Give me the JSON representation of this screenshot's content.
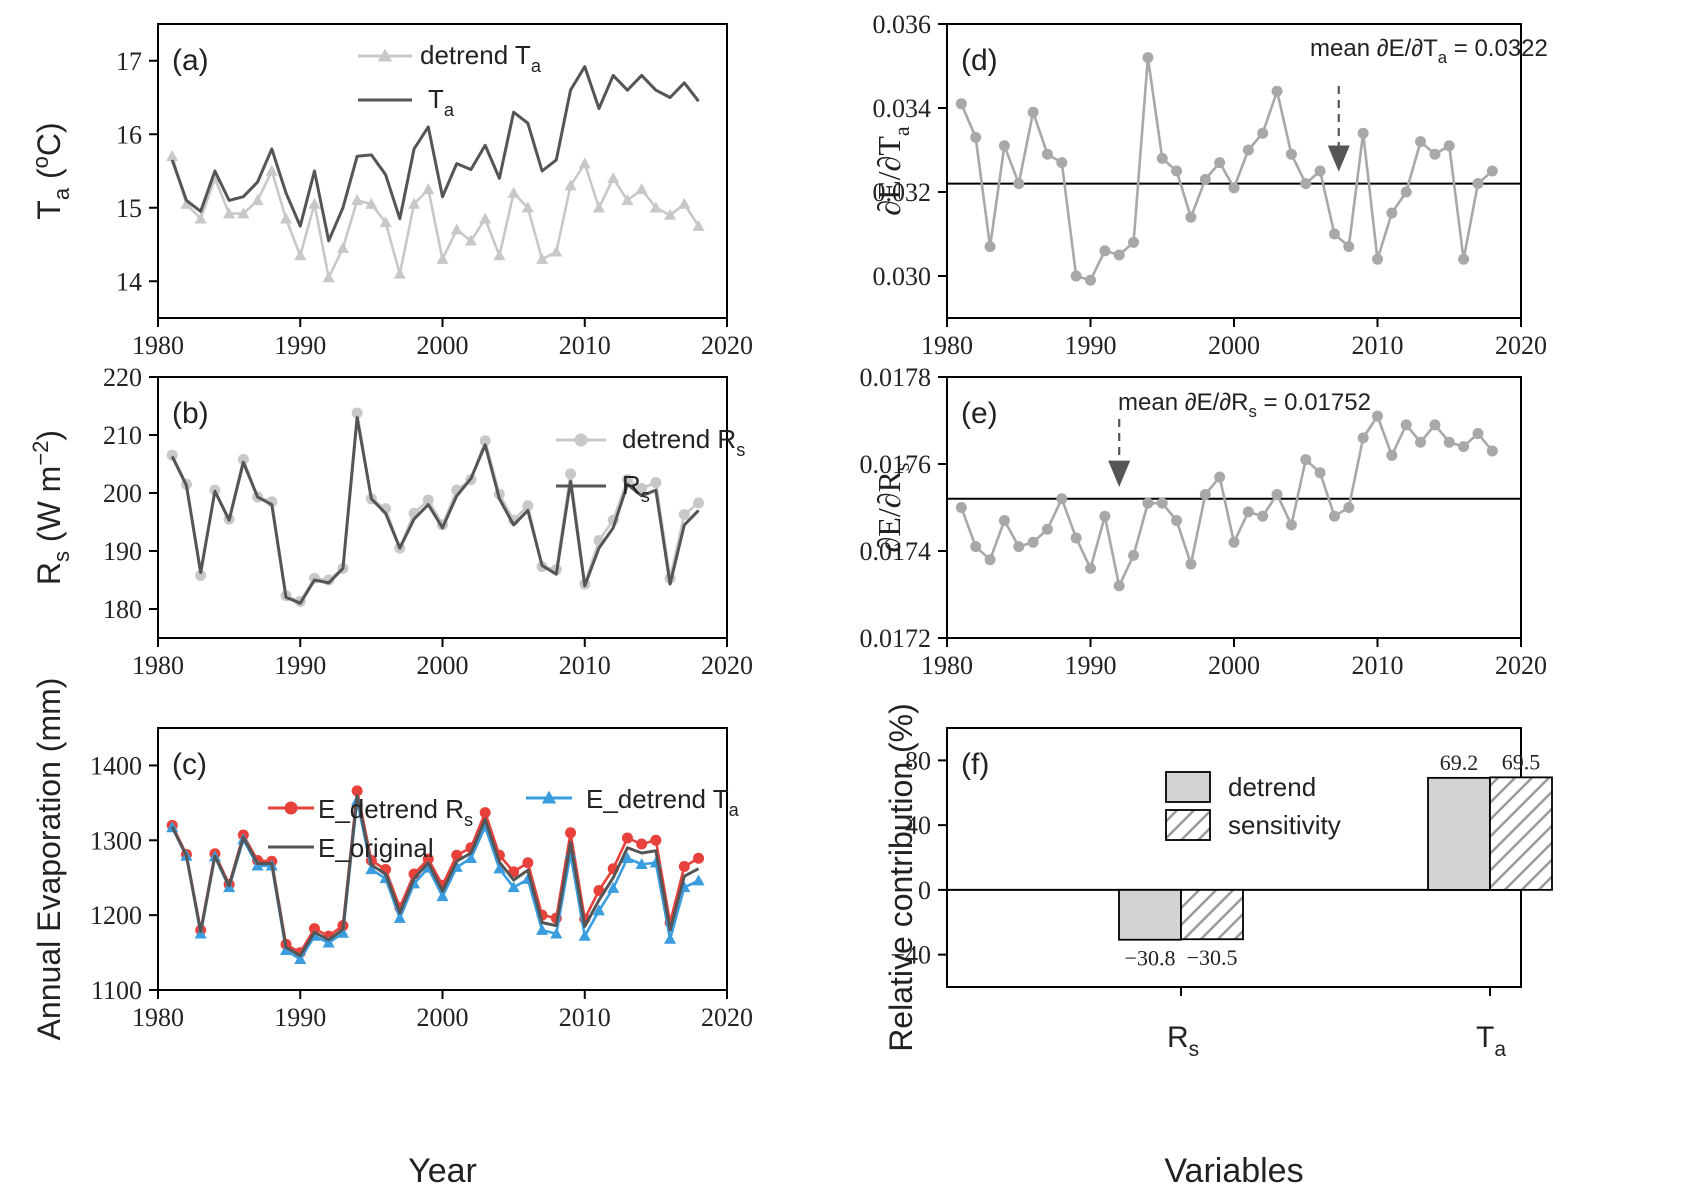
{
  "chart_data": [
    {
      "id": "a",
      "panel_label": "(a)",
      "type": "line",
      "ylabel_main": "T",
      "ylabel_sub": "a",
      "ylabel_rest": " (",
      "ylabel_sup": "o",
      "ylabel_end": "C)",
      "xlim": [
        1980,
        2020
      ],
      "ylim": [
        13.5,
        17.5
      ],
      "xticks": [
        1980,
        1990,
        2000,
        2010,
        2020
      ],
      "yticks": [
        14,
        15,
        16,
        17
      ],
      "x": [
        1981,
        1982,
        1983,
        1984,
        1985,
        1986,
        1987,
        1988,
        1989,
        1990,
        1991,
        1992,
        1993,
        1994,
        1995,
        1996,
        1997,
        1998,
        1999,
        2000,
        2001,
        2002,
        2003,
        2004,
        2005,
        2006,
        2007,
        2008,
        2009,
        2010,
        2011,
        2012,
        2013,
        2014,
        2015,
        2016,
        2017,
        2018
      ],
      "series": [
        {
          "name_main": "detrend T",
          "name_sub": "a",
          "color": "#c8c8c8",
          "marker": "triangle",
          "values": [
            15.7,
            15.05,
            14.85,
            15.4,
            14.92,
            14.92,
            15.1,
            15.5,
            14.85,
            14.35,
            15.05,
            14.05,
            14.45,
            15.1,
            15.05,
            14.8,
            14.1,
            15.05,
            15.25,
            14.3,
            14.7,
            14.55,
            14.85,
            14.35,
            15.2,
            15.0,
            14.3,
            14.4,
            15.3,
            15.6,
            15.0,
            15.4,
            15.1,
            15.25,
            15.0,
            14.9,
            15.05,
            14.75
          ]
        },
        {
          "name_main": "T",
          "name_sub": "a",
          "color": "#555555",
          "marker": "none",
          "values": [
            15.65,
            15.1,
            14.95,
            15.5,
            15.1,
            15.15,
            15.35,
            15.8,
            15.2,
            14.75,
            15.5,
            14.55,
            15.0,
            15.7,
            15.72,
            15.45,
            14.85,
            15.8,
            16.1,
            15.15,
            15.6,
            15.52,
            15.85,
            15.4,
            16.3,
            16.15,
            15.5,
            15.65,
            16.6,
            16.92,
            16.35,
            16.8,
            16.6,
            16.8,
            16.6,
            16.5,
            16.7,
            16.45
          ]
        }
      ]
    },
    {
      "id": "b",
      "panel_label": "(b)",
      "type": "line",
      "ylabel_main": "R",
      "ylabel_sub": "s",
      "ylabel_rest": " (W m",
      "ylabel_sup": "−2",
      "ylabel_end": ")",
      "xlim": [
        1980,
        2020
      ],
      "ylim": [
        175,
        220
      ],
      "xticks": [
        1980,
        1990,
        2000,
        2010,
        2020
      ],
      "yticks": [
        180,
        190,
        200,
        210,
        220
      ],
      "x": [
        1981,
        1982,
        1983,
        1984,
        1985,
        1986,
        1987,
        1988,
        1989,
        1990,
        1991,
        1992,
        1993,
        1994,
        1995,
        1996,
        1997,
        1998,
        1999,
        2000,
        2001,
        2002,
        2003,
        2004,
        2005,
        2006,
        2007,
        2008,
        2009,
        2010,
        2011,
        2012,
        2013,
        2014,
        2015,
        2016,
        2017,
        2018
      ],
      "series": [
        {
          "name_main": "detrend R",
          "name_sub": "s",
          "color": "#c8c8c8",
          "marker": "circle",
          "values": [
            206.5,
            201.5,
            185.8,
            200.5,
            195.5,
            205.8,
            199.3,
            198.5,
            182.3,
            181.3,
            185.3,
            185.0,
            187.0,
            213.8,
            199.0,
            197.3,
            190.5,
            196.5,
            198.8,
            194.5,
            200.5,
            202.3,
            209.0,
            199.8,
            195.3,
            197.8,
            187.3,
            186.8,
            203.3,
            184.3,
            191.8,
            195.3,
            202.3,
            200.8,
            201.8,
            185.3,
            196.3,
            198.3
          ]
        },
        {
          "name_main": "R",
          "name_sub": "s",
          "color": "#555555",
          "marker": "none",
          "values": [
            206.3,
            201.3,
            186.3,
            200.3,
            195.3,
            205.3,
            199.3,
            198.0,
            182.0,
            181.0,
            185.0,
            184.5,
            187.0,
            213.0,
            199.0,
            196.5,
            190.5,
            195.5,
            198.0,
            194.0,
            199.5,
            202.5,
            208.3,
            199.0,
            194.5,
            197.0,
            187.5,
            186.0,
            202.0,
            184.0,
            190.5,
            194.0,
            201.5,
            199.5,
            200.5,
            184.3,
            194.5,
            197.0
          ]
        }
      ]
    },
    {
      "id": "c",
      "panel_label": "(c)",
      "type": "line",
      "ylabel_main": "Annual Evaporation (mm)",
      "xlabel": "Year",
      "xlim": [
        1980,
        2020
      ],
      "ylim": [
        1100,
        1450
      ],
      "xticks": [
        1980,
        1990,
        2000,
        2010,
        2020
      ],
      "yticks": [
        1100,
        1200,
        1300,
        1400
      ],
      "x": [
        1981,
        1982,
        1983,
        1984,
        1985,
        1986,
        1987,
        1988,
        1989,
        1990,
        1991,
        1992,
        1993,
        1994,
        1995,
        1996,
        1997,
        1998,
        1999,
        2000,
        2001,
        2002,
        2003,
        2004,
        2005,
        2006,
        2007,
        2008,
        2009,
        2010,
        2011,
        2012,
        2013,
        2014,
        2015,
        2016,
        2017,
        2018
      ],
      "series": [
        {
          "name_main": "E_detrend R",
          "name_sub": "s",
          "color": "#e8413c",
          "marker": "circle",
          "values": [
            1320,
            1281,
            1180,
            1282,
            1241,
            1307,
            1273,
            1272,
            1161,
            1150,
            1182,
            1172,
            1186,
            1366,
            1273,
            1261,
            1210,
            1255,
            1275,
            1240,
            1280,
            1290,
            1337,
            1280,
            1258,
            1270,
            1200,
            1196,
            1310,
            1195,
            1233,
            1262,
            1303,
            1295,
            1300,
            1190,
            1265,
            1276
          ]
        },
        {
          "name_main": "E_detrend T",
          "name_sub": "a",
          "color": "#3a9de0",
          "marker": "triangle",
          "values": [
            1317,
            1279,
            1175,
            1278,
            1237,
            1301,
            1266,
            1266,
            1153,
            1141,
            1172,
            1163,
            1176,
            1353,
            1261,
            1249,
            1196,
            1242,
            1263,
            1225,
            1264,
            1276,
            1318,
            1262,
            1237,
            1248,
            1180,
            1175,
            1282,
            1172,
            1206,
            1236,
            1276,
            1268,
            1270,
            1168,
            1237,
            1246
          ]
        },
        {
          "name_main": "E_original",
          "name_sub": "",
          "color": "#555555",
          "marker": "none",
          "values": [
            1318,
            1279,
            1178,
            1279,
            1239,
            1304,
            1269,
            1269,
            1157,
            1146,
            1177,
            1167,
            1181,
            1360,
            1267,
            1255,
            1203,
            1249,
            1270,
            1232,
            1272,
            1283,
            1328,
            1271,
            1247,
            1260,
            1190,
            1186,
            1297,
            1185,
            1220,
            1250,
            1290,
            1283,
            1286,
            1180,
            1252,
            1262
          ]
        }
      ]
    },
    {
      "id": "d",
      "panel_label": "(d)",
      "type": "line",
      "ylabel_main": "∂E/∂T",
      "ylabel_sub": "a",
      "xlim": [
        1980,
        2020
      ],
      "ylim": [
        0.029,
        0.036
      ],
      "xticks": [
        1980,
        1990,
        2000,
        2010,
        2020
      ],
      "yticks": [
        "0.030",
        "0.032",
        "0.034",
        "0.036"
      ],
      "mean_value": 0.0322,
      "mean_label_main": "mean ∂E/∂T",
      "mean_label_sub": "a",
      "mean_label_rest": " = 0.0322",
      "arrow_year": 2007.3,
      "x": [
        1981,
        1982,
        1983,
        1984,
        1985,
        1986,
        1987,
        1988,
        1989,
        1990,
        1991,
        1992,
        1993,
        1994,
        1995,
        1996,
        1997,
        1998,
        1999,
        2000,
        2001,
        2002,
        2003,
        2004,
        2005,
        2006,
        2007,
        2008,
        2009,
        2010,
        2011,
        2012,
        2013,
        2014,
        2015,
        2016,
        2017,
        2018
      ],
      "series": [
        {
          "name_main": "∂E/∂T",
          "name_sub": "a",
          "color": "#a8a8a8",
          "marker": "circle",
          "values": [
            0.0341,
            0.0333,
            0.0307,
            0.0331,
            0.0322,
            0.0339,
            0.0329,
            0.0327,
            0.03,
            0.0299,
            0.0306,
            0.0305,
            0.0308,
            0.0352,
            0.0328,
            0.0325,
            0.0314,
            0.0323,
            0.0327,
            0.0321,
            0.033,
            0.0334,
            0.0344,
            0.0329,
            0.0322,
            0.0325,
            0.031,
            0.0307,
            0.0334,
            0.0304,
            0.0315,
            0.032,
            0.0332,
            0.0329,
            0.0331,
            0.0304,
            0.0322,
            0.0325
          ]
        }
      ]
    },
    {
      "id": "e",
      "panel_label": "(e)",
      "type": "line",
      "ylabel_main": "∂E/∂R",
      "ylabel_sub": "s",
      "xlim": [
        1980,
        2020
      ],
      "ylim": [
        0.0172,
        0.0178
      ],
      "xticks": [
        1980,
        1990,
        2000,
        2010,
        2020
      ],
      "yticks": [
        "0.0172",
        "0.0174",
        "0.0176",
        "0.0178"
      ],
      "mean_value": 0.01752,
      "mean_label_main": "mean ∂E/∂R",
      "mean_label_sub": "s",
      "mean_label_rest": " = 0.01752",
      "arrow_year": 1992,
      "x": [
        1981,
        1982,
        1983,
        1984,
        1985,
        1986,
        1987,
        1988,
        1989,
        1990,
        1991,
        1992,
        1993,
        1994,
        1995,
        1996,
        1997,
        1998,
        1999,
        2000,
        2001,
        2002,
        2003,
        2004,
        2005,
        2006,
        2007,
        2008,
        2009,
        2010,
        2011,
        2012,
        2013,
        2014,
        2015,
        2016,
        2017,
        2018
      ],
      "series": [
        {
          "name_main": "∂E/∂R",
          "name_sub": "s",
          "color": "#a8a8a8",
          "marker": "circle",
          "values": [
            0.0175,
            0.01741,
            0.01738,
            0.01747,
            0.01741,
            0.01742,
            0.01745,
            0.01752,
            0.01743,
            0.01736,
            0.01748,
            0.01732,
            0.01739,
            0.01751,
            0.01751,
            0.01747,
            0.01737,
            0.01753,
            0.01757,
            0.01742,
            0.01749,
            0.01748,
            0.01753,
            0.01746,
            0.01761,
            0.01758,
            0.01748,
            0.0175,
            0.01766,
            0.01771,
            0.01762,
            0.01769,
            0.01765,
            0.01769,
            0.01765,
            0.01764,
            0.01767,
            0.01763
          ]
        }
      ]
    },
    {
      "id": "f",
      "panel_label": "(f)",
      "type": "bar",
      "ylabel_main": "Relative contribution (%)",
      "xlabel": "Variables",
      "ylim": [
        -60,
        100
      ],
      "yticks": [
        -40,
        0,
        40,
        80
      ],
      "categories": [
        {
          "main": "R",
          "sub": "s"
        },
        {
          "main": "T",
          "sub": "a"
        }
      ],
      "series": [
        {
          "name": "detrend",
          "fill": "#d3d3d3",
          "hatch": false,
          "values": [
            -30.8,
            69.2
          ],
          "labels": [
            "−30.8",
            "69.2"
          ]
        },
        {
          "name": "sensitivity",
          "fill": "#ffffff",
          "hatch": true,
          "values": [
            -30.5,
            69.5
          ],
          "labels": [
            "−30.5",
            "69.5"
          ]
        }
      ]
    }
  ]
}
